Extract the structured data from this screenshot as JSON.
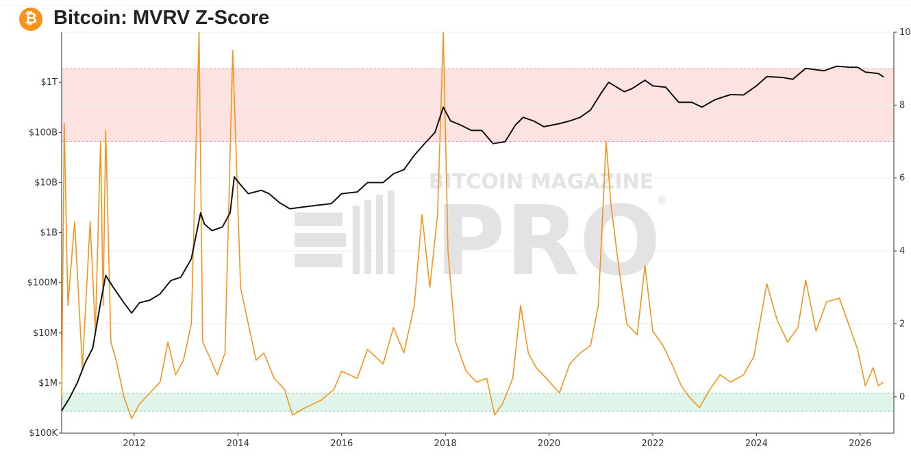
{
  "header": {
    "title": "Bitcoin: MVRV Z-Score",
    "logo_glyph": "₿",
    "logo_color": "#f7931a"
  },
  "watermark": {
    "line1": "BITCOIN MAGAZINE",
    "line2": "PRO",
    "registered": "®"
  },
  "chart_data": {
    "type": "line",
    "title": "Bitcoin: MVRV Z-Score",
    "x_ticks": [
      "2012",
      "2014",
      "2016",
      "2018",
      "2020",
      "2022",
      "2024",
      "2026"
    ],
    "x_range": [
      2010.6,
      2026.65
    ],
    "y_left": {
      "scale": "log",
      "range": [
        100000,
        10000000000000
      ],
      "ticks": [
        {
          "value": 100000,
          "label": "$100K"
        },
        {
          "value": 1000000,
          "label": "$1M"
        },
        {
          "value": 10000000,
          "label": "$10M"
        },
        {
          "value": 100000000,
          "label": "$100M"
        },
        {
          "value": 1000000000,
          "label": "$1B"
        },
        {
          "value": 10000000000,
          "label": "$10B"
        },
        {
          "value": 100000000000,
          "label": "$100B"
        },
        {
          "value": 1000000000000,
          "label": "$1T"
        }
      ]
    },
    "y_right": {
      "scale": "linear",
      "range": [
        -1,
        10
      ],
      "ticks": [
        0,
        2,
        4,
        6,
        8,
        10
      ]
    },
    "bands": [
      {
        "name": "overvalued",
        "axis": "right",
        "from": 7,
        "to": 9,
        "color": "#fde2e2"
      },
      {
        "name": "undervalued",
        "axis": "right",
        "from": -0.4,
        "to": 0.1,
        "color": "#dff5ea"
      }
    ],
    "series": [
      {
        "key": "market_cap",
        "axis": "left",
        "color": "#111111",
        "points": [
          [
            2010.6,
            280000
          ],
          [
            2010.75,
            500000
          ],
          [
            2010.9,
            1000000
          ],
          [
            2011.05,
            2500000
          ],
          [
            2011.2,
            5000000
          ],
          [
            2011.35,
            40000000
          ],
          [
            2011.45,
            140000000
          ],
          [
            2011.6,
            80000000
          ],
          [
            2011.8,
            40000000
          ],
          [
            2011.95,
            25000000
          ],
          [
            2012.1,
            40000000
          ],
          [
            2012.3,
            45000000
          ],
          [
            2012.5,
            60000000
          ],
          [
            2012.7,
            110000000
          ],
          [
            2012.9,
            130000000
          ],
          [
            2013.1,
            300000000
          ],
          [
            2013.28,
            2500000000
          ],
          [
            2013.35,
            1500000000
          ],
          [
            2013.5,
            1100000000
          ],
          [
            2013.7,
            1300000000
          ],
          [
            2013.85,
            2500000000
          ],
          [
            2013.93,
            13000000000
          ],
          [
            2014.05,
            9000000000
          ],
          [
            2014.2,
            6000000000
          ],
          [
            2014.45,
            7000000000
          ],
          [
            2014.6,
            6000000000
          ],
          [
            2014.8,
            4000000000
          ],
          [
            2015.0,
            3000000000
          ],
          [
            2015.2,
            3200000000
          ],
          [
            2015.5,
            3500000000
          ],
          [
            2015.8,
            3800000000
          ],
          [
            2016.0,
            6000000000
          ],
          [
            2016.3,
            6500000000
          ],
          [
            2016.5,
            10000000000
          ],
          [
            2016.8,
            10000000000
          ],
          [
            2017.0,
            15000000000
          ],
          [
            2017.2,
            18000000000
          ],
          [
            2017.4,
            35000000000
          ],
          [
            2017.6,
            60000000000
          ],
          [
            2017.8,
            100000000000
          ],
          [
            2017.96,
            320000000000
          ],
          [
            2018.1,
            170000000000
          ],
          [
            2018.3,
            140000000000
          ],
          [
            2018.5,
            110000000000
          ],
          [
            2018.7,
            110000000000
          ],
          [
            2018.92,
            60000000000
          ],
          [
            2019.15,
            65000000000
          ],
          [
            2019.35,
            140000000000
          ],
          [
            2019.5,
            200000000000
          ],
          [
            2019.7,
            170000000000
          ],
          [
            2019.9,
            130000000000
          ],
          [
            2020.2,
            150000000000
          ],
          [
            2020.4,
            170000000000
          ],
          [
            2020.6,
            200000000000
          ],
          [
            2020.8,
            280000000000
          ],
          [
            2021.0,
            600000000000
          ],
          [
            2021.15,
            1000000000000
          ],
          [
            2021.45,
            650000000000
          ],
          [
            2021.6,
            750000000000
          ],
          [
            2021.85,
            1100000000000
          ],
          [
            2022.0,
            850000000000
          ],
          [
            2022.25,
            800000000000
          ],
          [
            2022.5,
            400000000000
          ],
          [
            2022.75,
            400000000000
          ],
          [
            2022.95,
            320000000000
          ],
          [
            2023.2,
            450000000000
          ],
          [
            2023.5,
            570000000000
          ],
          [
            2023.75,
            560000000000
          ],
          [
            2024.0,
            850000000000
          ],
          [
            2024.2,
            1300000000000
          ],
          [
            2024.5,
            1250000000000
          ],
          [
            2024.7,
            1150000000000
          ],
          [
            2024.95,
            1900000000000
          ],
          [
            2025.3,
            1700000000000
          ],
          [
            2025.55,
            2100000000000
          ],
          [
            2025.8,
            2000000000000
          ],
          [
            2025.95,
            2000000000000
          ],
          [
            2026.1,
            1600000000000
          ],
          [
            2026.35,
            1500000000000
          ],
          [
            2026.45,
            1280000000000
          ]
        ]
      },
      {
        "key": "mvrv_z_score",
        "axis": "right",
        "color": "#f7931a",
        "points": [
          [
            2010.6,
            0.0
          ],
          [
            2010.65,
            7.5
          ],
          [
            2010.72,
            2.5
          ],
          [
            2010.85,
            4.8
          ],
          [
            2011.0,
            0.8
          ],
          [
            2011.15,
            4.8
          ],
          [
            2011.25,
            1.8
          ],
          [
            2011.35,
            7.0
          ],
          [
            2011.4,
            2.5
          ],
          [
            2011.45,
            7.3
          ],
          [
            2011.55,
            1.5
          ],
          [
            2011.65,
            1.0
          ],
          [
            2011.8,
            0.0
          ],
          [
            2011.95,
            -0.6
          ],
          [
            2012.1,
            -0.2
          ],
          [
            2012.3,
            0.1
          ],
          [
            2012.5,
            0.4
          ],
          [
            2012.65,
            1.5
          ],
          [
            2012.8,
            0.6
          ],
          [
            2012.95,
            1.0
          ],
          [
            2013.1,
            2.0
          ],
          [
            2013.25,
            10.0
          ],
          [
            2013.32,
            1.5
          ],
          [
            2013.45,
            1.1
          ],
          [
            2013.6,
            0.6
          ],
          [
            2013.75,
            1.2
          ],
          [
            2013.9,
            9.5
          ],
          [
            2014.05,
            3.0
          ],
          [
            2014.2,
            2.0
          ],
          [
            2014.35,
            1.0
          ],
          [
            2014.5,
            1.2
          ],
          [
            2014.7,
            0.5
          ],
          [
            2014.9,
            0.2
          ],
          [
            2015.05,
            -0.5
          ],
          [
            2015.3,
            -0.3
          ],
          [
            2015.6,
            -0.1
          ],
          [
            2015.85,
            0.2
          ],
          [
            2016.0,
            0.7
          ],
          [
            2016.3,
            0.5
          ],
          [
            2016.5,
            1.3
          ],
          [
            2016.8,
            0.9
          ],
          [
            2017.0,
            1.9
          ],
          [
            2017.2,
            1.2
          ],
          [
            2017.4,
            2.5
          ],
          [
            2017.55,
            5.0
          ],
          [
            2017.7,
            3.0
          ],
          [
            2017.85,
            5.0
          ],
          [
            2017.96,
            10.0
          ],
          [
            2018.05,
            4.0
          ],
          [
            2018.2,
            1.5
          ],
          [
            2018.4,
            0.7
          ],
          [
            2018.6,
            0.4
          ],
          [
            2018.8,
            0.5
          ],
          [
            2018.95,
            -0.5
          ],
          [
            2019.1,
            -0.2
          ],
          [
            2019.3,
            0.5
          ],
          [
            2019.45,
            2.5
          ],
          [
            2019.6,
            1.2
          ],
          [
            2019.75,
            0.8
          ],
          [
            2019.95,
            0.5
          ],
          [
            2020.2,
            0.1
          ],
          [
            2020.4,
            0.9
          ],
          [
            2020.6,
            1.2
          ],
          [
            2020.8,
            1.4
          ],
          [
            2020.95,
            2.5
          ],
          [
            2021.1,
            7.0
          ],
          [
            2021.2,
            5.2
          ],
          [
            2021.35,
            3.5
          ],
          [
            2021.5,
            2.0
          ],
          [
            2021.7,
            1.7
          ],
          [
            2021.85,
            3.6
          ],
          [
            2022.0,
            1.8
          ],
          [
            2022.2,
            1.4
          ],
          [
            2022.4,
            0.8
          ],
          [
            2022.55,
            0.3
          ],
          [
            2022.7,
            0.0
          ],
          [
            2022.9,
            -0.3
          ],
          [
            2023.1,
            0.2
          ],
          [
            2023.3,
            0.6
          ],
          [
            2023.5,
            0.4
          ],
          [
            2023.75,
            0.6
          ],
          [
            2023.95,
            1.1
          ],
          [
            2024.2,
            3.1
          ],
          [
            2024.4,
            2.1
          ],
          [
            2024.6,
            1.5
          ],
          [
            2024.8,
            1.9
          ],
          [
            2024.95,
            3.2
          ],
          [
            2025.15,
            1.8
          ],
          [
            2025.35,
            2.6
          ],
          [
            2025.6,
            2.7
          ],
          [
            2025.8,
            1.9
          ],
          [
            2025.95,
            1.3
          ],
          [
            2026.1,
            0.3
          ],
          [
            2026.25,
            0.8
          ],
          [
            2026.35,
            0.3
          ],
          [
            2026.45,
            0.4
          ]
        ]
      }
    ]
  }
}
